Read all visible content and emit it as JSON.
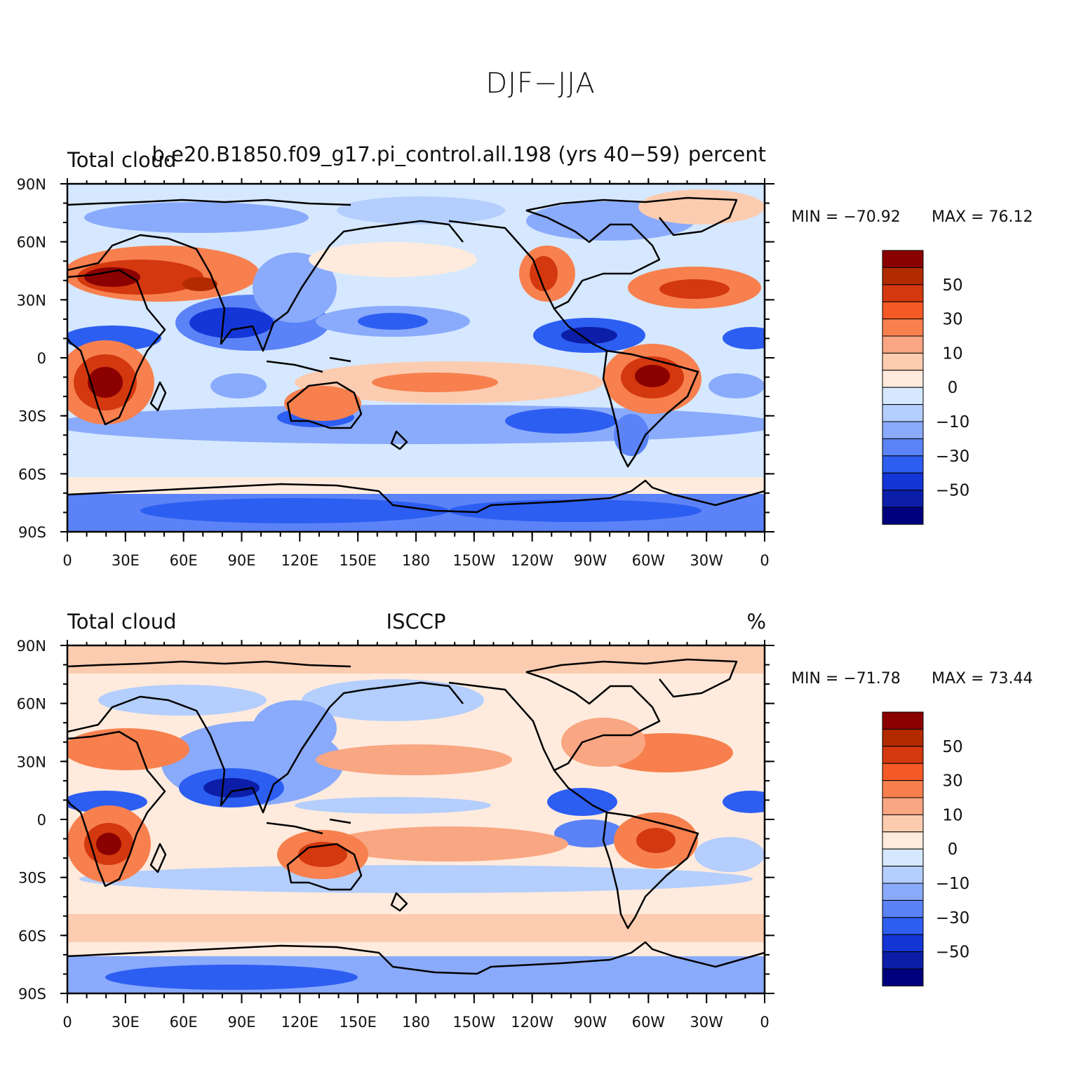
{
  "title": "DJF−JJA",
  "lat_ticks": [
    "90N",
    "60N",
    "30N",
    "0",
    "30S",
    "60S",
    "90S"
  ],
  "lon_ticks": [
    "0",
    "30E",
    "60E",
    "90E",
    "120E",
    "150E",
    "180",
    "150W",
    "120W",
    "90W",
    "60W",
    "30W",
    "0"
  ],
  "colorbar": {
    "colors": [
      "#8b0000",
      "#b22a00",
      "#d4380f",
      "#f55a26",
      "#f7804e",
      "#f9a682",
      "#fcccb0",
      "#feebdd",
      "#d5e8ff",
      "#b4cefd",
      "#8aaafb",
      "#5b83f7",
      "#2d5ef2",
      "#1536d6",
      "#0c1ea8",
      "#00007e"
    ],
    "labels": [
      "50",
      "30",
      "10",
      "0",
      "−10",
      "−30",
      "−50"
    ]
  },
  "panels": [
    {
      "left_label": "Total cloud",
      "center_label": "b.e20.B1850.f09_g17.pi_control.all.198 (yrs 40−59)",
      "right_label": "percent",
      "min_label": "MIN = −70.92",
      "max_label": "MAX =  76.12"
    },
    {
      "left_label": "Total cloud",
      "center_label": "ISCCP",
      "right_label": "%",
      "min_label": "MIN = −71.78",
      "max_label": "MAX =  73.44"
    }
  ]
}
